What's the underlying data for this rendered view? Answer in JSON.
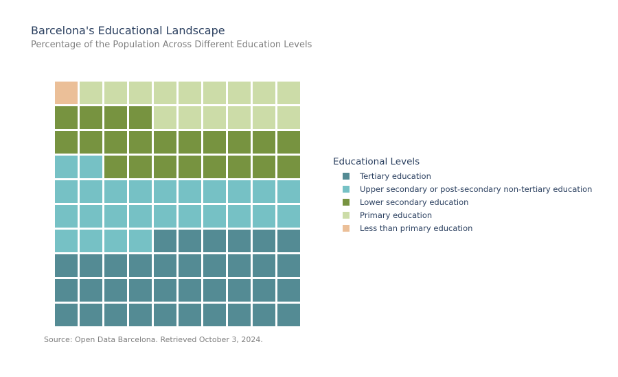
{
  "chart_data": {
    "type": "waffle",
    "title": "Barcelona's Educational Landscape",
    "subtitle": "Percentage of the Population Across Different Education Levels",
    "grid": {
      "rows": 10,
      "cols": 10
    },
    "legend_title": "Educational Levels",
    "legend_placement": "right",
    "categories": [
      {
        "name": "Tertiary education",
        "value": 36,
        "color": "#548b94"
      },
      {
        "name": "Upper secondary or post-secondary non-tertiary education",
        "value": 26,
        "color": "#76c1c5"
      },
      {
        "name": "Lower secondary education",
        "value": 22,
        "color": "#779340"
      },
      {
        "name": "Primary education",
        "value": 15,
        "color": "#ccdca8"
      },
      {
        "name": "Less than primary education",
        "value": 1,
        "color": "#ebbf98"
      }
    ],
    "source": "Source: Open Data Barcelona. Retrieved October 3, 2024."
  }
}
